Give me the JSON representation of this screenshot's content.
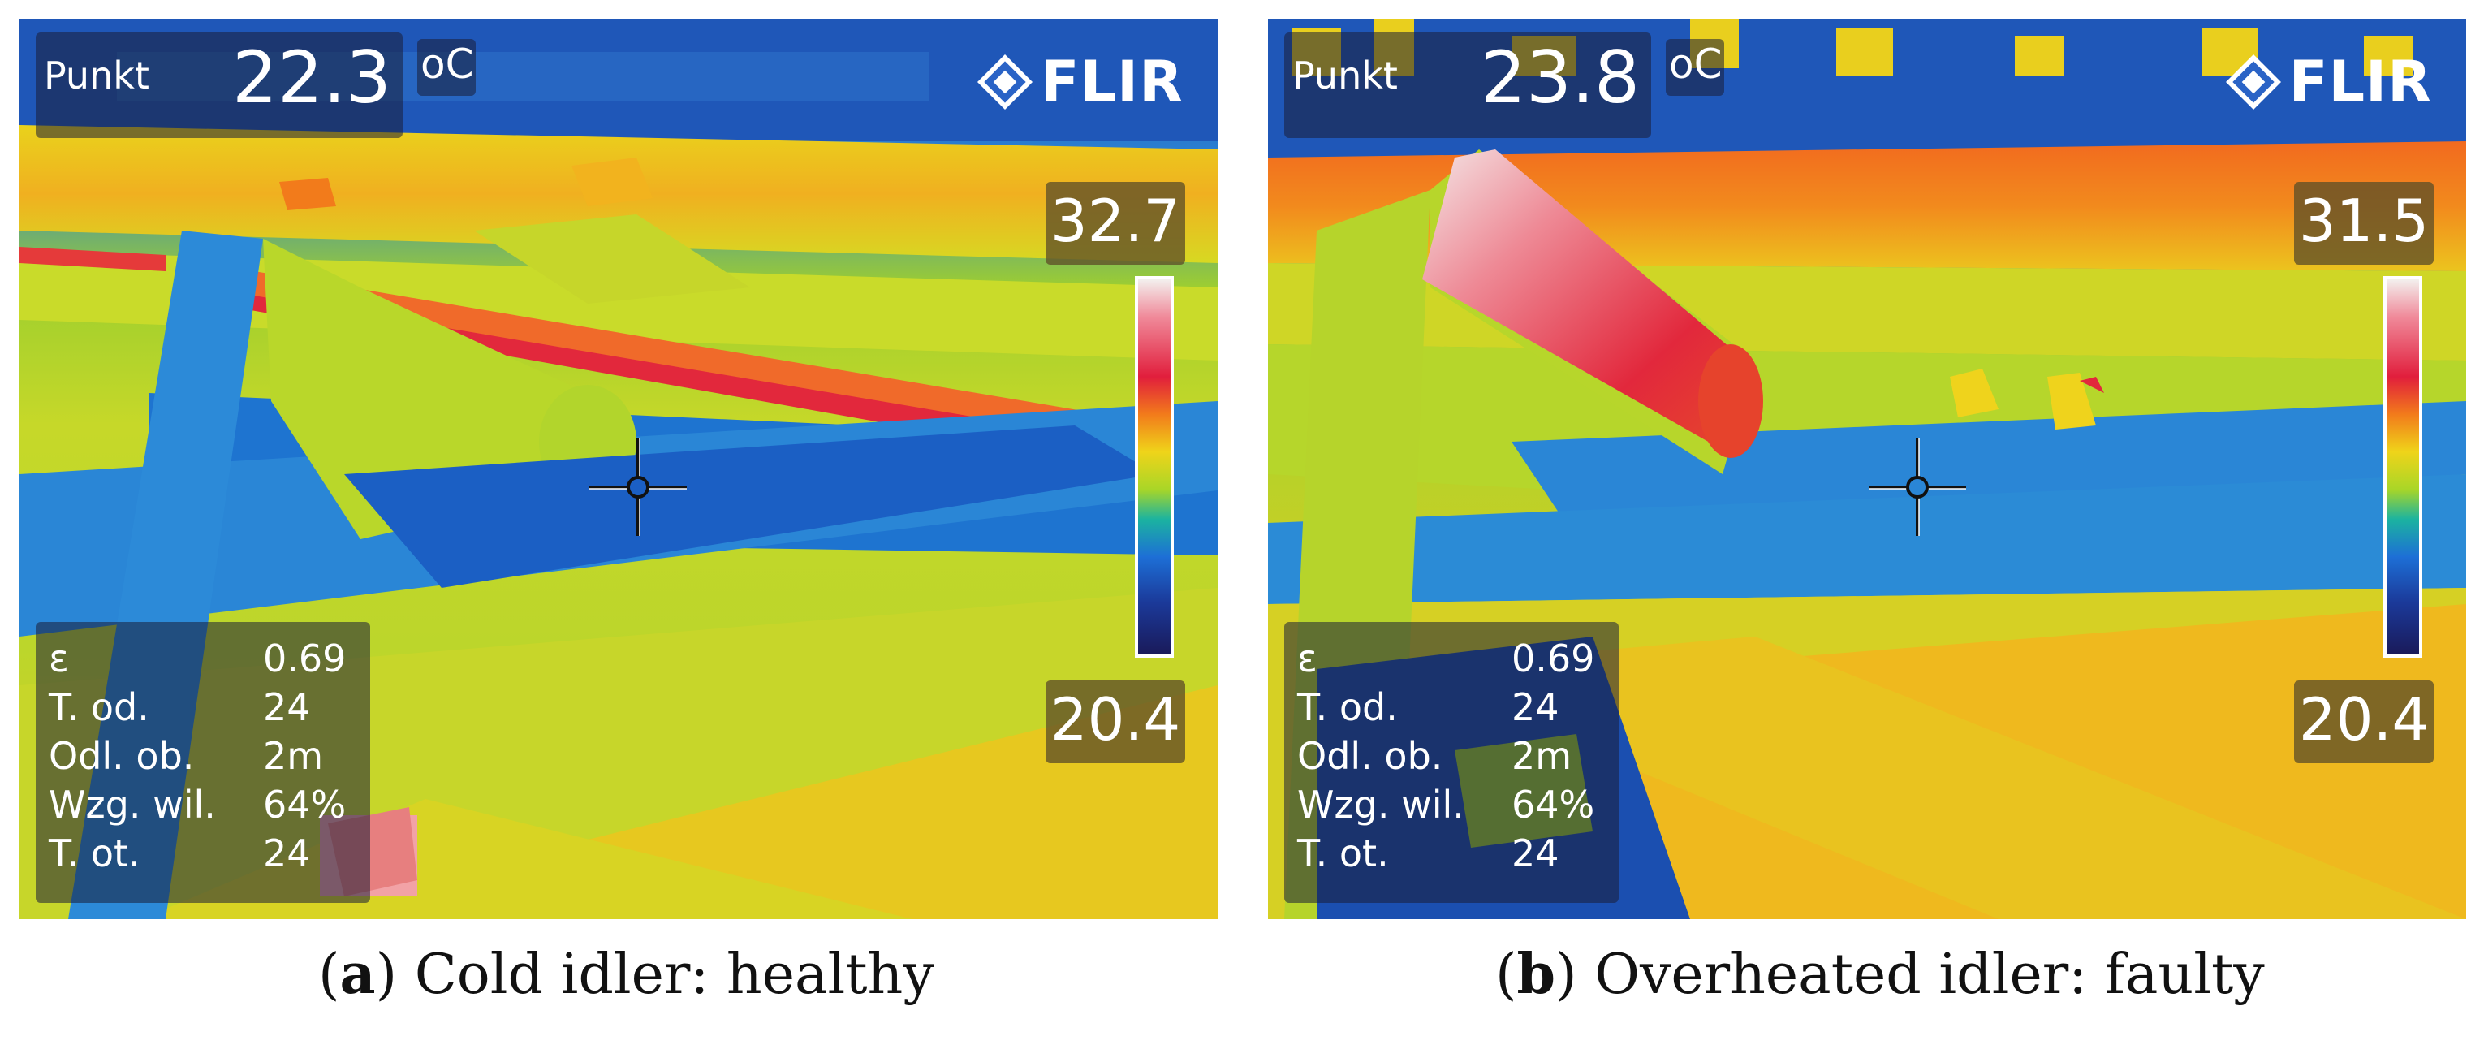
{
  "colors": {
    "iron_palette": [
      "#1a1a5a",
      "#1b3a9a",
      "#1d6fd6",
      "#1bb3a0",
      "#a9d627",
      "#efd41a",
      "#f27b1b",
      "#e11e3c",
      "#f08a9a",
      "#f3f0ee"
    ]
  },
  "panels": [
    {
      "spot_label": "Punkt",
      "spot_value": "22.3",
      "unit": "oC",
      "brand": "FLIR",
      "scale_max": "32.7",
      "scale_min": "20.4",
      "params": [
        {
          "label": "ε",
          "value": "0.69"
        },
        {
          "label": "T. od.",
          "value": "24"
        },
        {
          "label": "Odl. ob.",
          "value": "2m"
        },
        {
          "label": "Wzg. wil.",
          "value": "64%"
        },
        {
          "label": "T. ot.",
          "value": "24"
        }
      ],
      "caption_letter": "a",
      "caption_text": " Cold idler: healthy"
    },
    {
      "spot_label": "Punkt",
      "spot_value": "23.8",
      "unit": "oC",
      "brand": "FLIR",
      "scale_max": "31.5",
      "scale_min": "20.4",
      "params": [
        {
          "label": "ε",
          "value": "0.69"
        },
        {
          "label": "T. od.",
          "value": "24"
        },
        {
          "label": "Odl. ob.",
          "value": "2m"
        },
        {
          "label": "Wzg. wil.",
          "value": "64%"
        },
        {
          "label": "T. ot.",
          "value": "24"
        }
      ],
      "caption_letter": "b",
      "caption_text": " Overheated idler: faulty"
    }
  ]
}
